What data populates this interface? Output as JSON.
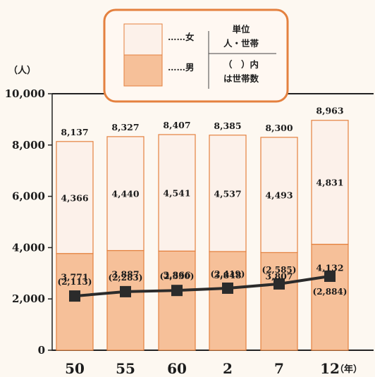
{
  "chart_data": {
    "type": "bar",
    "stacked": true,
    "categories": [
      "50",
      "55",
      "60",
      "2",
      "7",
      "12"
    ],
    "series": [
      {
        "name": "男",
        "values": [
          3771,
          3887,
          3866,
          3848,
          3807,
          4132
        ],
        "color": "#f6c099"
      },
      {
        "name": "女",
        "values": [
          4366,
          4440,
          4541,
          4537,
          4493,
          4831
        ],
        "color": "#fcf1ea"
      }
    ],
    "totals": [
      8137,
      8327,
      8407,
      8385,
      8300,
      8963
    ],
    "households": {
      "values": [
        2113,
        2283,
        2330,
        2419,
        2585,
        2884
      ],
      "type": "line",
      "marker": "square",
      "color": "#2b2b2b"
    },
    "ylim": [
      0,
      10000
    ],
    "yticks": [
      0,
      2000,
      4000,
      6000,
      8000,
      10000
    ],
    "ylabel": "（人）",
    "xlabel": "（年）",
    "bar_edge_color": "#e4813f",
    "legend": {
      "position": "top-right",
      "male": "……男",
      "female": "……女",
      "unit_line1": "単位",
      "unit_line2": "人・世帯",
      "note_line1": "（　）内",
      "note_line2": "は世帯数"
    }
  }
}
